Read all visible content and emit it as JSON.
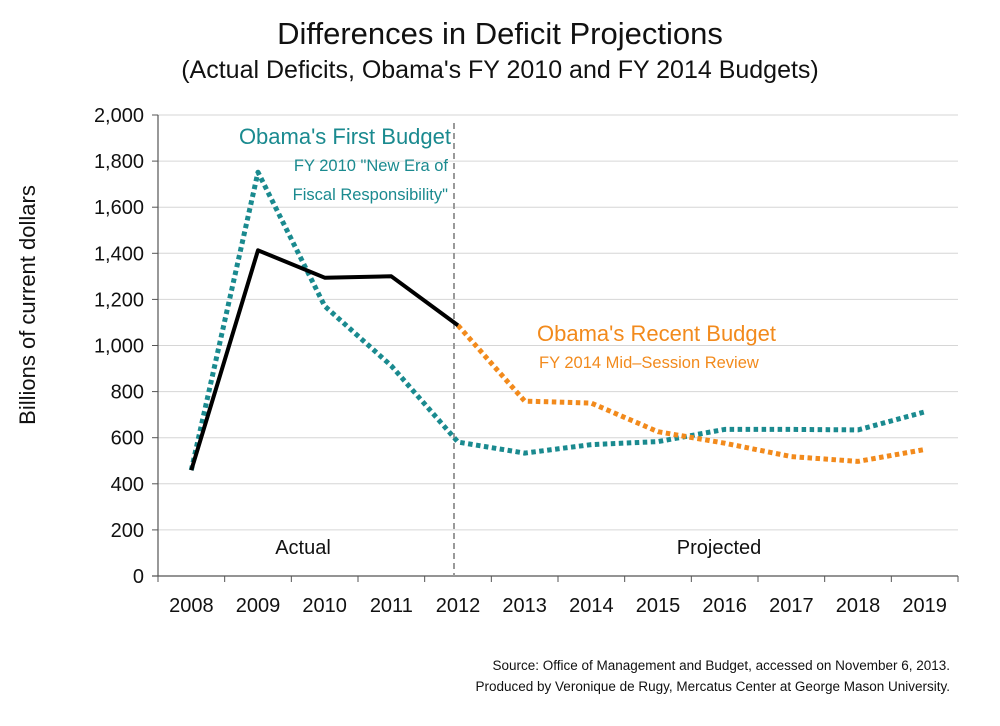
{
  "chart_data": {
    "type": "line",
    "title": "Differences in Deficit Projections",
    "subtitle": "(Actual Deficits, Obama's FY 2010 and FY 2014 Budgets)",
    "ylabel": "Billions of current dollars",
    "xlabel": "",
    "ylim": [
      0,
      2000
    ],
    "yticks": [
      "0",
      "200",
      "400",
      "600",
      "800",
      "1,000",
      "1,200",
      "1,400",
      "1,600",
      "1,800",
      "2,000"
    ],
    "categories": [
      "2008",
      "2009",
      "2010",
      "2011",
      "2012",
      "2013",
      "2014",
      "2015",
      "2016",
      "2017",
      "2018",
      "2019"
    ],
    "grid": true,
    "series": [
      {
        "name": "Actual",
        "color": "#000000",
        "style": "solid",
        "values": [
          459,
          1413,
          1294,
          1300,
          1087,
          null,
          null,
          null,
          null,
          null,
          null,
          null
        ]
      },
      {
        "name": "Obama's First Budget",
        "color": "#1a8a8f",
        "style": "dotted",
        "values": [
          459,
          1752,
          1171,
          912,
          581,
          533,
          570,
          583,
          636,
          636,
          634,
          712
        ]
      },
      {
        "name": "Obama's Recent Budget",
        "color": "#f28a1c",
        "style": "dotted",
        "values": [
          null,
          null,
          null,
          null,
          1087,
          759,
          750,
          626,
          576,
          518,
          497,
          549
        ]
      }
    ],
    "annotations": {
      "first_budget_title": "Obama's First Budget",
      "first_budget_sub1": "FY 2010 \"New Era of",
      "first_budget_sub2": "Fiscal Responsibility\"",
      "recent_budget_title": "Obama's Recent Budget",
      "recent_budget_sub": "FY 2014 Mid–Session Review",
      "actual_label": "Actual",
      "projected_label": "Projected"
    },
    "divider_at": "2012"
  },
  "source_line1": "Source: Office of Management and Budget, accessed on November 6, 2013.",
  "source_line2": "Produced by Veronique de Rugy, Mercatus Center at George Mason University."
}
